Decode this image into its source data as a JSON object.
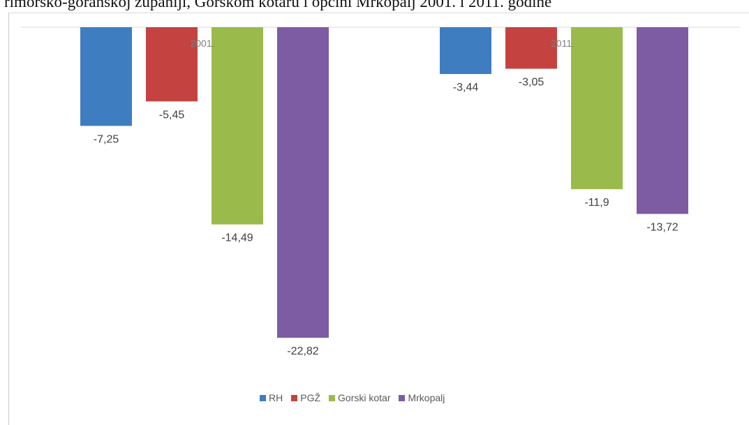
{
  "caption": "rimorsko-goranskoj županiji, Gorskom kotaru i općini Mrkopalj 2001. i 2011. godine",
  "chart_data": {
    "type": "bar",
    "categories": [
      "2001.",
      "2011."
    ],
    "series": [
      {
        "name": "RH",
        "color": "#3f7dc1",
        "values": [
          -7.25,
          -3.44
        ],
        "labels": [
          "-7,25",
          "-3,44"
        ]
      },
      {
        "name": "PGŽ",
        "color": "#c44341",
        "values": [
          -5.45,
          -3.05
        ],
        "labels": [
          "-5,45",
          "-3,05"
        ]
      },
      {
        "name": "Gorski kotar",
        "color": "#9aba4c",
        "values": [
          -14.49,
          -11.9
        ],
        "labels": [
          "-14,49",
          "-11,9"
        ]
      },
      {
        "name": "Mrkopalj",
        "color": "#7d5ca3",
        "values": [
          -22.82,
          -13.72
        ],
        "labels": [
          "-22,82",
          "-13,72"
        ]
      }
    ],
    "ylim": [
      -22.82,
      0
    ],
    "legend_position": "bottom",
    "grid": false
  }
}
